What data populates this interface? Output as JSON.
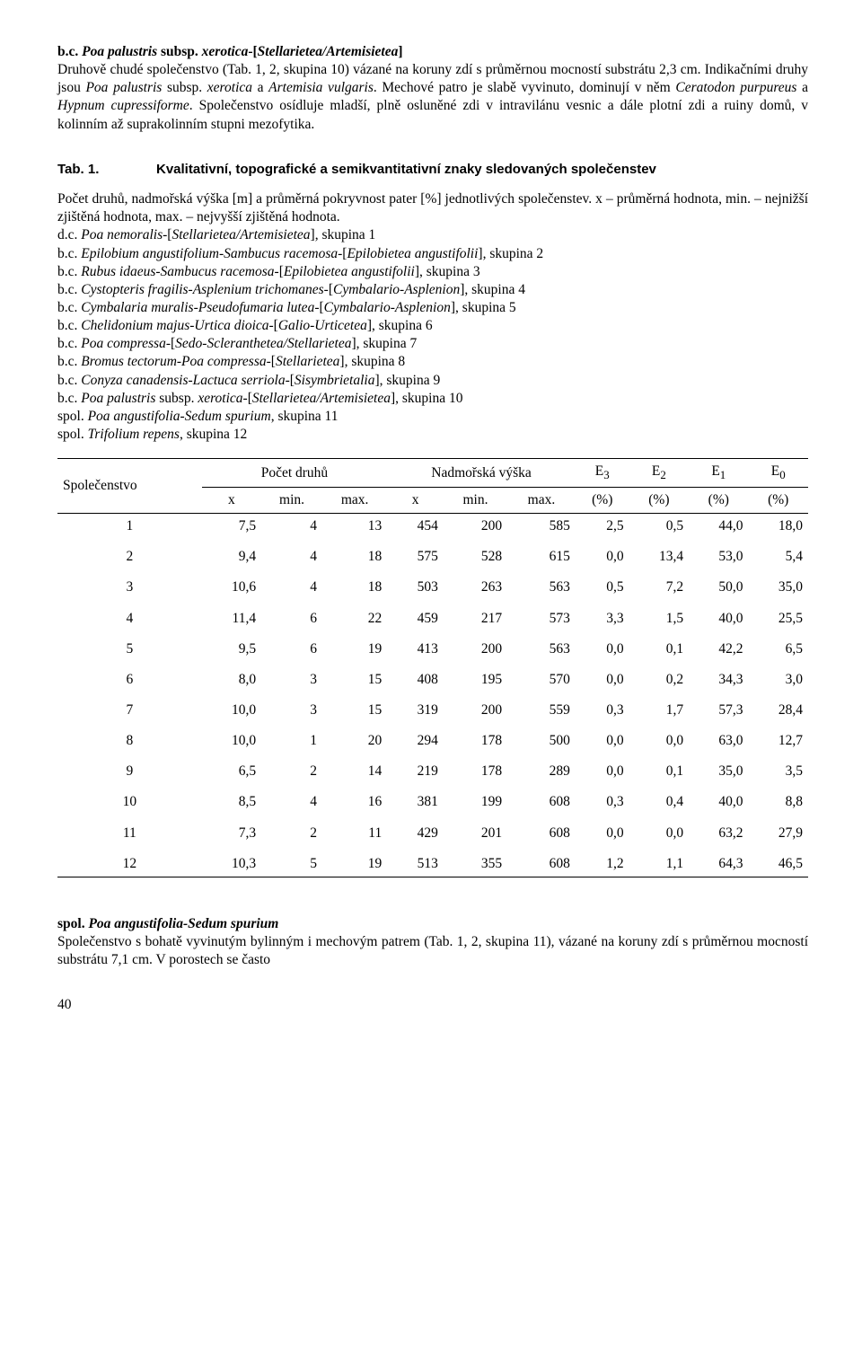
{
  "para1_heading": "b.c. Poa palustris subsp. xerotica-[Stellarietea/Artemisietea]",
  "para1_body_pre": "Druhově chudé společenstvo (Tab. 1, 2, skupina 10) vázané na koruny zdí s průměrnou mocností substrátu 2,3 cm. Indikačními druhy jsou ",
  "para1_body_i1": "Poa palustris ",
  "para1_body_mid1": "subsp. ",
  "para1_body_i2": "xerotica ",
  "para1_body_mid2": "a ",
  "para1_body_i3": "Artemisia vulgaris",
  "para1_body_mid3": ". Mechové patro je slabě vyvinuto, dominují v něm ",
  "para1_body_i4": "Ceratodon purpureus ",
  "para1_body_mid4": "a ",
  "para1_body_i5": "Hypnum cupressiforme",
  "para1_body_tail": ". Společenstvo osídluje mladší, plně osluněné zdi v intravilánu vesnic a dále plotní zdi a ruiny domů, v kolinním až suprakolinním stupni mezofytika.",
  "tab_label": "Tab. 1.",
  "tab_desc": "Kvalitativní, topografické a semikvantitativní znaky sledovaných společenstev",
  "legend_intro": "Počet druhů, nadmořská výška [m] a průměrná pokryvnost pater [%] jednotlivých společenstev. x – průměrná hodnota, min. – nejnižší zjištěná hodnota, max. – nejvyšší zjištěná hodnota.",
  "legend_lines": [
    {
      "pre": "d.c. ",
      "i": "Poa nemoralis",
      "post": "-[",
      "i2": "Stellarietea/Artemisietea",
      "tail": "], skupina 1"
    },
    {
      "pre": "b.c. ",
      "i": "Epilobium angustifolium-Sambucus racemosa",
      "post": "-[",
      "i2": "Epilobietea angustifolii",
      "tail": "], skupina 2"
    },
    {
      "pre": "b.c. ",
      "i": "Rubus idaeus-Sambucus racemosa",
      "post": "-[",
      "i2": "Epilobietea angustifolii",
      "tail": "], skupina 3"
    },
    {
      "pre": "b.c. ",
      "i": "Cystopteris fragilis-Asplenium trichomanes",
      "post": "-[",
      "i2": "Cymbalario-Asplenion",
      "tail": "], skupina 4"
    },
    {
      "pre": "b.c. ",
      "i": "Cymbalaria muralis-Pseudofumaria lutea",
      "post": "-[",
      "i2": "Cymbalario-Asplenion",
      "tail": "], skupina 5"
    },
    {
      "pre": "b.c. ",
      "i": "Chelidonium majus-Urtica dioica",
      "post": "-[",
      "i2": "Galio-Urticetea",
      "tail": "], skupina 6"
    },
    {
      "pre": "b.c. ",
      "i": "Poa compressa",
      "post": "-[",
      "i2": "Sedo-Scleranthetea/Stellarietea",
      "tail": "], skupina 7"
    },
    {
      "pre": "b.c. ",
      "i": "Bromus tectorum-Poa compressa",
      "post": "-[",
      "i2": "Stellarietea",
      "tail": "], skupina 8"
    },
    {
      "pre": "b.c. ",
      "i": "Conyza canadensis-Lactuca serriola",
      "post": "-[",
      "i2": "Sisymbrietalia",
      "tail": "], skupina 9"
    },
    {
      "pre": "b.c. ",
      "i": "Poa palustris ",
      "post": "subsp. ",
      "i2": "xerotica",
      "tail": "-[",
      "i3": "Stellarietea/Artemisietea",
      "tail2": "], skupina 10"
    },
    {
      "pre": "spol. ",
      "i": "Poa  angustifolia-Sedum spurium",
      "post": ", skupina 11"
    },
    {
      "pre": "spol. ",
      "i": "Trifolium repens",
      "post": ", skupina 12"
    }
  ],
  "table": {
    "col_spolecenstvo": "Společenstvo",
    "col_pocet": "Počet druhů",
    "col_nadm": "Nadmořská výška",
    "col_e3": "E",
    "col_e3_sub": "3",
    "col_e2": "E",
    "col_e2_sub": "2",
    "col_e1": "E",
    "col_e1_sub": "1",
    "col_e0": "E",
    "col_e0_sub": "0",
    "sub_x": "x",
    "sub_min": "min.",
    "sub_max": "max.",
    "sub_pct": "(%)",
    "rows": [
      [
        "1",
        "7,5",
        "4",
        "13",
        "454",
        "200",
        "585",
        "2,5",
        "0,5",
        "44,0",
        "18,0"
      ],
      [
        "2",
        "9,4",
        "4",
        "18",
        "575",
        "528",
        "615",
        "0,0",
        "13,4",
        "53,0",
        "5,4"
      ],
      [
        "3",
        "10,6",
        "4",
        "18",
        "503",
        "263",
        "563",
        "0,5",
        "7,2",
        "50,0",
        "35,0"
      ],
      [
        "4",
        "11,4",
        "6",
        "22",
        "459",
        "217",
        "573",
        "3,3",
        "1,5",
        "40,0",
        "25,5"
      ],
      [
        "5",
        "9,5",
        "6",
        "19",
        "413",
        "200",
        "563",
        "0,0",
        "0,1",
        "42,2",
        "6,5"
      ],
      [
        "6",
        "8,0",
        "3",
        "15",
        "408",
        "195",
        "570",
        "0,0",
        "0,2",
        "34,3",
        "3,0"
      ],
      [
        "7",
        "10,0",
        "3",
        "15",
        "319",
        "200",
        "559",
        "0,3",
        "1,7",
        "57,3",
        "28,4"
      ],
      [
        "8",
        "10,0",
        "1",
        "20",
        "294",
        "178",
        "500",
        "0,0",
        "0,0",
        "63,0",
        "12,7"
      ],
      [
        "9",
        "6,5",
        "2",
        "14",
        "219",
        "178",
        "289",
        "0,0",
        "0,1",
        "35,0",
        "3,5"
      ],
      [
        "10",
        "8,5",
        "4",
        "16",
        "381",
        "199",
        "608",
        "0,3",
        "0,4",
        "40,0",
        "8,8"
      ],
      [
        "11",
        "7,3",
        "2",
        "11",
        "429",
        "201",
        "608",
        "0,0",
        "0,0",
        "63,2",
        "27,9"
      ],
      [
        "12",
        "10,3",
        "5",
        "19",
        "513",
        "355",
        "608",
        "1,2",
        "1,1",
        "64,3",
        "46,5"
      ]
    ]
  },
  "para2_heading_pre": "spol. ",
  "para2_heading_i": "Poa  angustifolia-Sedum spurium",
  "para2_body": "Společenstvo s bohatě vyvinutým bylinným i mechovým patrem (Tab. 1, 2, skupina 11), vázané na koruny zdí s průměrnou mocností substrátu 7,1 cm. V porostech se často",
  "page_num": "40"
}
